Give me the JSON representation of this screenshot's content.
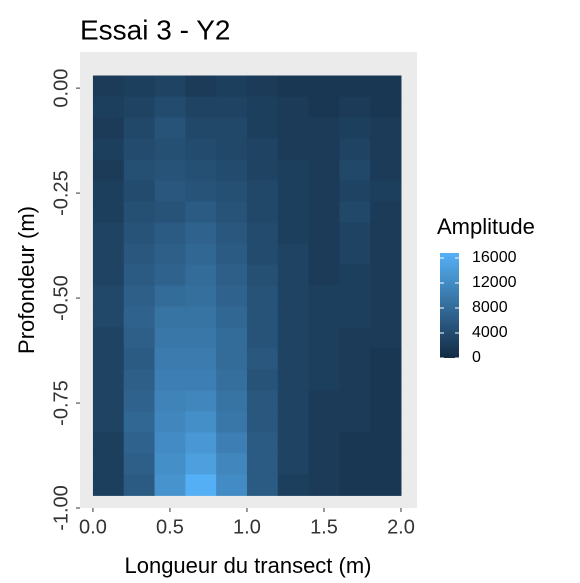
{
  "chart_data": {
    "type": "heatmap",
    "title": "Essai 3 - Y2",
    "x_label": "Longueur du transect (m)",
    "y_label": "Profondeur (m)",
    "legend_title": "Amplitude",
    "xlim": [
      -0.084,
      2.104
    ],
    "ylim": [
      -1.0,
      0.086
    ],
    "xticks": [
      {
        "value": 0,
        "label": "0.0"
      },
      0.5,
      {
        "value": 1,
        "label": "1.0"
      },
      1.5,
      {
        "value": 2,
        "label": "2.0"
      }
    ],
    "yticks": [
      {
        "value": 0,
        "label": "0.00"
      },
      -0.25,
      {
        "value": -0.5,
        "label": "-0.50"
      },
      -0.75,
      {
        "value": -1,
        "label": "-1.00"
      }
    ],
    "zlim": [
      0,
      16800
    ],
    "zticks": [
      16000,
      12000,
      8000,
      4000,
      0
    ],
    "colors": [
      "#132B43",
      "#56B1F7"
    ],
    "xbins": [
      0,
      0.2,
      0.4,
      0.6,
      0.8,
      1.0,
      1.2,
      1.4,
      1.6,
      1.8,
      2.0
    ],
    "ybins": [
      0.03,
      -0.02,
      -0.07,
      -0.12,
      -0.17,
      -0.22,
      -0.27,
      -0.32,
      -0.37,
      -0.42,
      -0.47,
      -0.52,
      -0.57,
      -0.62,
      -0.67,
      -0.72,
      -0.77,
      -0.82,
      -0.87,
      -0.92,
      -0.97
    ],
    "z": [
      [
        2000,
        2500,
        3000,
        2000,
        2500,
        2000,
        1500,
        1500,
        1500,
        1500
      ],
      [
        2500,
        3000,
        4000,
        3000,
        3000,
        2500,
        2000,
        1500,
        2000,
        1500
      ],
      [
        2000,
        3500,
        5000,
        3500,
        3500,
        2500,
        2000,
        2000,
        2500,
        2000
      ],
      [
        2500,
        4000,
        4500,
        4000,
        3500,
        3000,
        2000,
        2000,
        3000,
        2000
      ],
      [
        2000,
        4500,
        5000,
        4500,
        4000,
        3000,
        2500,
        2000,
        3500,
        2000
      ],
      [
        2500,
        4000,
        5500,
        5000,
        4500,
        3500,
        2500,
        2000,
        3000,
        2500
      ],
      [
        2500,
        4500,
        5000,
        6000,
        5000,
        3500,
        2500,
        2000,
        3500,
        2000
      ],
      [
        3000,
        5000,
        6000,
        7000,
        5500,
        4000,
        2500,
        2000,
        3000,
        2000
      ],
      [
        3000,
        5500,
        6500,
        7500,
        6000,
        4000,
        3000,
        2000,
        3000,
        2000
      ],
      [
        3000,
        6000,
        7000,
        8000,
        6500,
        4500,
        3000,
        2000,
        2500,
        2000
      ],
      [
        3500,
        6500,
        8000,
        8500,
        7000,
        5000,
        3000,
        2500,
        2500,
        2000
      ],
      [
        3500,
        7000,
        9000,
        9000,
        7500,
        5000,
        3000,
        2500,
        2500,
        2000
      ],
      [
        3000,
        6500,
        9500,
        9500,
        8000,
        5000,
        3000,
        2500,
        2000,
        2000
      ],
      [
        3000,
        6000,
        10000,
        10000,
        8000,
        5500,
        3000,
        2500,
        2000,
        1500
      ],
      [
        3000,
        6500,
        10500,
        10500,
        8500,
        5000,
        3000,
        2500,
        2000,
        1500
      ],
      [
        3000,
        7000,
        11000,
        11500,
        9000,
        5500,
        3000,
        2000,
        2000,
        1500
      ],
      [
        3000,
        7500,
        11500,
        12500,
        9500,
        5500,
        3000,
        2000,
        2000,
        1500
      ],
      [
        2500,
        7000,
        12000,
        13500,
        10500,
        6000,
        3000,
        2000,
        1500,
        1500
      ],
      [
        2500,
        6500,
        12500,
        14500,
        11500,
        6000,
        3000,
        2000,
        1500,
        1500
      ],
      [
        2500,
        6000,
        13000,
        16500,
        12000,
        6000,
        2500,
        2000,
        1500,
        1500
      ]
    ]
  }
}
